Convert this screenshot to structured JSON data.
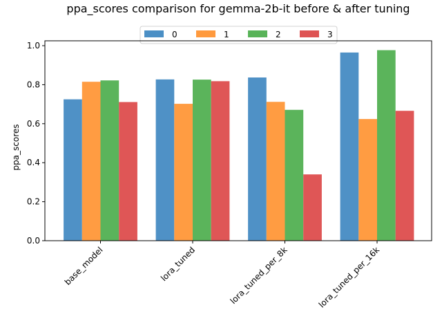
{
  "chart_data": {
    "type": "bar",
    "title": "ppa_scores comparison for gemma-2b-it before & after tuning",
    "xlabel": "",
    "ylabel": "ppa_scores",
    "ylim": [
      0,
      1.025
    ],
    "yticks": [
      "0.0",
      "0.2",
      "0.4",
      "0.6",
      "0.8",
      "1.0"
    ],
    "grid": false,
    "legend_position": "top-center",
    "categories": [
      "base_model",
      "lora_tuned",
      "lora_tuned_per_8k",
      "lora_tuned_per_16k"
    ],
    "series": [
      {
        "name": "0",
        "color": "#4b8fc5",
        "values": [
          0.725,
          0.827,
          0.837,
          0.965
        ]
      },
      {
        "name": "1",
        "color": "#ff9a3e",
        "values": [
          0.815,
          0.702,
          0.712,
          0.624
        ]
      },
      {
        "name": "2",
        "color": "#58b358",
        "values": [
          0.822,
          0.826,
          0.671,
          0.977
        ]
      },
      {
        "name": "3",
        "color": "#de5353",
        "values": [
          0.711,
          0.818,
          0.34,
          0.666
        ]
      }
    ]
  }
}
